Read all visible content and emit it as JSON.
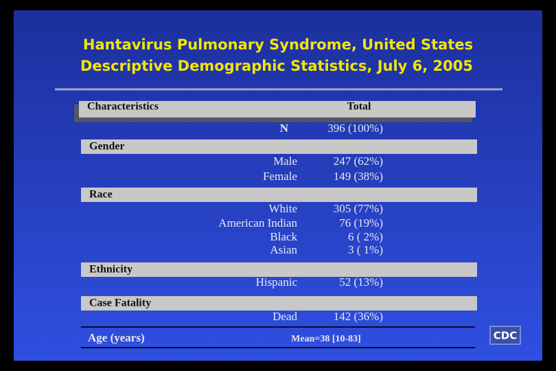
{
  "title": [
    "Hantavirus Pulmonary Syndrome, United States",
    "Descriptive Demographic Statistics, July 6, 2005"
  ],
  "table": {
    "header": [
      "Characteristics",
      "Total"
    ],
    "n": [
      "N",
      "396 (100%)"
    ],
    "sections": [
      {
        "name": "Gender",
        "rows": [
          [
            "Male",
            "247 (62%)"
          ],
          [
            "Female",
            "149 (38%)"
          ]
        ]
      },
      {
        "name": "Race",
        "rows": [
          [
            "White",
            "305 (77%)"
          ],
          [
            "American Indian",
            "76 (19%)"
          ],
          [
            "Black",
            "6 ( 2%)"
          ],
          [
            "Asian",
            "3 ( 1%)"
          ]
        ]
      },
      {
        "name": "Ethnicity",
        "rows": [
          [
            "Hispanic",
            "52 (13%)"
          ]
        ]
      },
      {
        "name": "Case Fatality",
        "rows": [
          [
            "Dead",
            "142 (36%)"
          ]
        ]
      }
    ],
    "age": [
      "Age (years)",
      "Mean=38 [10-83]"
    ]
  },
  "logo": "CDC"
}
